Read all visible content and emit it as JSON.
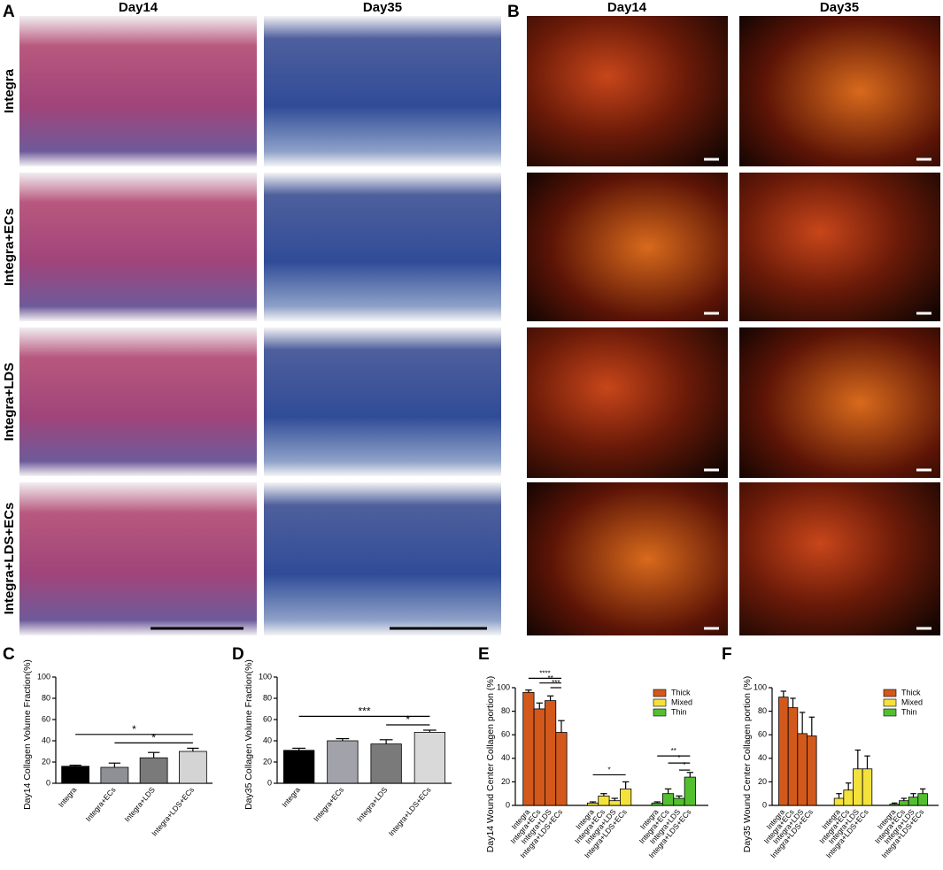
{
  "panel_labels": [
    "A",
    "B",
    "C",
    "D",
    "E",
    "F"
  ],
  "columns": [
    "Day14",
    "Day35"
  ],
  "rows": [
    "Integra",
    "Integra+ECs",
    "Integra+LDS",
    "Integra+LDS+ECs"
  ],
  "chart_data": [
    {
      "type": "bar",
      "y_label": "Day14 Collagen Volume Fraction(%)",
      "categories": [
        "Integra",
        "Integra+ECs",
        "Integra+LDS",
        "Integra+LDS+ECs"
      ],
      "values": [
        16,
        15,
        24,
        30
      ],
      "errors": [
        1,
        4,
        5,
        3
      ],
      "colors": [
        "#000000",
        "#8f8f96",
        "#7a7a7a",
        "#d4d4d4"
      ],
      "ylim": [
        0,
        100
      ],
      "yticks": [
        0,
        20,
        40,
        60,
        80,
        100
      ],
      "annotations": [
        "*",
        "*"
      ]
    },
    {
      "type": "bar",
      "y_label": "Day35 Collagen Volume Fraction(%)",
      "categories": [
        "Integra",
        "Integra+ECs",
        "Integra+LDS",
        "Integra+LDS+ECs"
      ],
      "values": [
        31,
        40,
        37,
        48
      ],
      "errors": [
        2,
        2,
        4,
        2
      ],
      "colors": [
        "#000000",
        "#a2a2aa",
        "#7a7a7a",
        "#d9d9d9"
      ],
      "ylim": [
        0,
        100
      ],
      "yticks": [
        0,
        20,
        40,
        60,
        80,
        100
      ],
      "annotations": [
        "***",
        "*"
      ]
    },
    {
      "type": "grouped_bar",
      "y_label": "Day14 Wound Center Collagen portion (%)",
      "categories": [
        "Integra",
        "Integra+ECs",
        "Integra+LDS",
        "Integra+LDS+ECs"
      ],
      "series": [
        {
          "name": "Thick",
          "color": "#d2591b",
          "values": [
            96,
            82,
            89,
            62
          ],
          "errors": [
            2,
            5,
            4,
            10
          ]
        },
        {
          "name": "Mixed",
          "color": "#f4e23c",
          "values": [
            2,
            8,
            4,
            14
          ],
          "errors": [
            1,
            2,
            2,
            6
          ]
        },
        {
          "name": "Thin",
          "color": "#52c02e",
          "values": [
            2,
            10,
            6,
            24
          ],
          "errors": [
            1,
            4,
            2,
            4
          ]
        }
      ],
      "ylim": [
        0,
        100
      ],
      "yticks": [
        0,
        20,
        40,
        60,
        80,
        100
      ],
      "legend": "upper right",
      "annotations": [
        "****",
        "**",
        "***",
        "*",
        "**",
        "*",
        "*"
      ]
    },
    {
      "type": "grouped_bar",
      "y_label": "Day35 Wound Center Collagen portion (%)",
      "categories": [
        "Integra",
        "Integra+ECs",
        "Integra+LDS",
        "Integra+LDS+ECs"
      ],
      "series": [
        {
          "name": "Thick",
          "color": "#d2591b",
          "values": [
            92,
            83,
            61,
            59
          ],
          "errors": [
            5,
            8,
            18,
            16
          ]
        },
        {
          "name": "Mixed",
          "color": "#f4e23c",
          "values": [
            6,
            13,
            31,
            31
          ],
          "errors": [
            4,
            6,
            16,
            11
          ]
        },
        {
          "name": "Thin",
          "color": "#52c02e",
          "values": [
            1,
            4,
            7,
            10
          ],
          "errors": [
            1,
            2,
            3,
            4
          ]
        }
      ],
      "ylim": [
        0,
        100
      ],
      "yticks": [
        0,
        20,
        40,
        60,
        80,
        100
      ],
      "legend": "upper right"
    }
  ]
}
